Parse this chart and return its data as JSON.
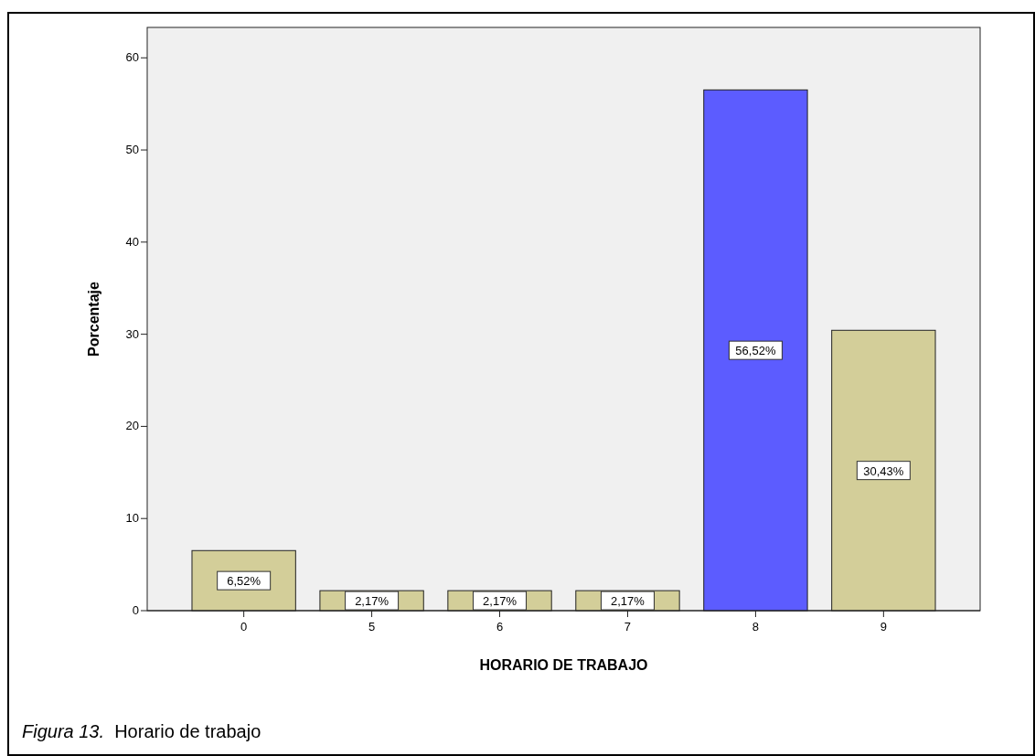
{
  "chart_data": {
    "type": "bar",
    "xlabel": "HORARIO DE TRABAJO",
    "ylabel": "Porcentaje",
    "categories": [
      "0",
      "5",
      "6",
      "7",
      "8",
      "9"
    ],
    "values": [
      6.52,
      2.17,
      2.17,
      2.17,
      56.52,
      30.43
    ],
    "colors": [
      "#d3ce99",
      "#d3ce99",
      "#d3ce99",
      "#d3ce99",
      "#5c5cff",
      "#d3ce99"
    ],
    "value_labels": [
      "6,52%",
      "2,17%",
      "2,17%",
      "2,17%",
      "56,52%",
      "30,43%"
    ],
    "ylim": [
      0,
      63.3
    ],
    "yticks": [
      0,
      10,
      20,
      30,
      40,
      50,
      60
    ],
    "grid": false,
    "annotations": [
      "Figura 13.",
      "Horario de trabajo"
    ]
  }
}
